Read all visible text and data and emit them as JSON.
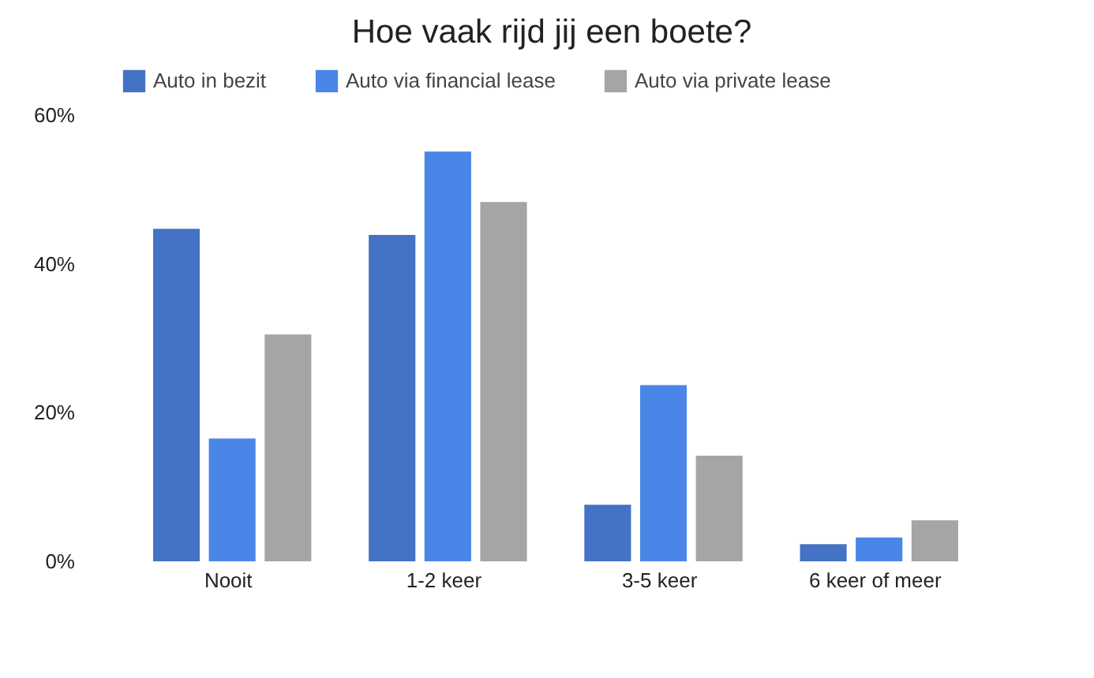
{
  "chart_data": {
    "type": "bar",
    "title": "Hoe vaak rijd jij een boete?",
    "categories": [
      "Nooit",
      "1-2 keer",
      "3-5 keer",
      "6 keer of meer"
    ],
    "series": [
      {
        "name": "Auto in bezit",
        "color": "#4472c4",
        "values": [
          44.7,
          43.9,
          7.6,
          2.3
        ]
      },
      {
        "name": "Auto via financial lease",
        "color": "#4a86e8",
        "values": [
          16.5,
          55.1,
          23.7,
          3.2
        ]
      },
      {
        "name": "Auto via private lease",
        "color": "#a5a5a5",
        "values": [
          30.5,
          48.3,
          14.2,
          5.5
        ]
      }
    ],
    "ylim": [
      0,
      60
    ],
    "yticks": [
      {
        "value": 0,
        "label": "0%"
      },
      {
        "value": 20,
        "label": "20%"
      },
      {
        "value": 40,
        "label": "40%"
      },
      {
        "value": 60,
        "label": "60%"
      }
    ],
    "grid": false,
    "legend": "top"
  }
}
